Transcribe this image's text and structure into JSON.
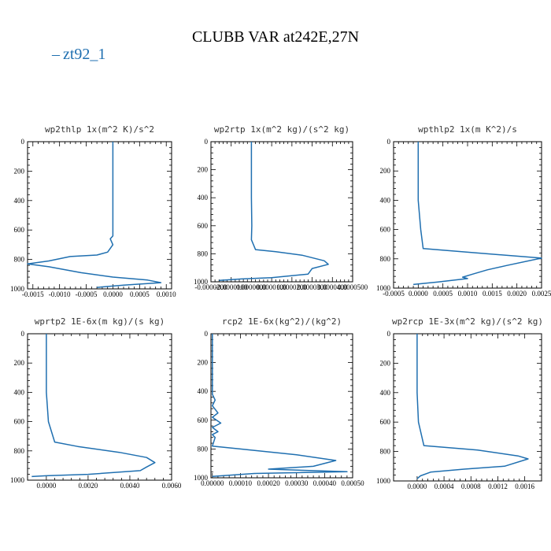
{
  "figure": {
    "title": "CLUBB VAR at242E,27N",
    "legend": [
      {
        "name": "zt92_1",
        "color": "#1f6fb0"
      }
    ]
  },
  "chart_data": [
    {
      "type": "line",
      "title": "wp2thlp   1x(m^2 K)/s^2",
      "xlim": [
        -0.0016,
        0.0011
      ],
      "ylim": [
        1000,
        0
      ],
      "xticks": [
        -0.0015,
        -0.001,
        -0.0005,
        0,
        0.0005,
        0.001
      ],
      "xtick_labels": [
        "-0.0015",
        "-0.0010",
        "-0.0005",
        "0.0000",
        "0.0005",
        "0.0010"
      ],
      "yticks": [
        0,
        200,
        400,
        600,
        800,
        1000
      ],
      "series": [
        {
          "name": "zt92_1",
          "color": "#1f6fb0",
          "x": [
            0,
            0,
            0,
            0,
            0,
            0,
            -5e-05,
            0,
            -0.0001,
            -0.0003,
            -0.0008,
            -0.0012,
            -0.0016,
            -0.0012,
            -0.0006,
            0,
            0.00065,
            0.0009,
            0.0002,
            -0.0003
          ],
          "y": [
            0,
            200,
            400,
            500,
            600,
            640,
            660,
            700,
            750,
            770,
            780,
            810,
            830,
            850,
            890,
            920,
            940,
            958,
            975,
            990
          ]
        }
      ]
    },
    {
      "type": "line",
      "title": "wp2rtp   1x(m^2 kg)/(s^2 kg)",
      "xlim": [
        -2e-05,
        5e-05
      ],
      "ylim": [
        1000,
        0
      ],
      "xticks": [
        -2e-05,
        -1e-05,
        0,
        1e-05,
        2e-05,
        3e-05,
        4e-05,
        5e-05
      ],
      "xtick_labels": [
        "-0.0000200",
        "-0.0000100",
        "0.0000000",
        "0.0000100",
        "0.0000200",
        "0.0000300",
        "0.0000400",
        "0.0000500"
      ],
      "yticks": [
        0,
        200,
        400,
        600,
        800,
        1000
      ],
      "series": [
        {
          "name": "zt92_1",
          "color": "#1f6fb0",
          "x": [
            0,
            0,
            0,
            2e-07,
            0,
            2e-06,
            1.2e-05,
            2.5e-05,
            3.6e-05,
            3.8e-05,
            3e-05,
            2.8e-05,
            1e-05,
            -5e-06,
            -1.6e-05
          ],
          "y": [
            0,
            200,
            400,
            600,
            700,
            770,
            785,
            810,
            850,
            875,
            905,
            945,
            970,
            980,
            990
          ]
        }
      ]
    },
    {
      "type": "line",
      "title": "wpthlp2   1x(m K^2)/s",
      "xlim": [
        -0.0005,
        0.0025
      ],
      "ylim": [
        1000,
        0
      ],
      "xticks": [
        -0.0005,
        0,
        0.0005,
        0.001,
        0.0015,
        0.002,
        0.0025
      ],
      "xtick_labels": [
        "-0.0005",
        "0.0000",
        "0.0005",
        "0.0010",
        "0.0015",
        "0.0020",
        "0.0025"
      ],
      "yticks": [
        0,
        200,
        400,
        600,
        800,
        1000
      ],
      "series": [
        {
          "name": "zt92_1",
          "color": "#1f6fb0",
          "x": [
            0,
            0,
            0,
            5e-05,
            0.0001,
            0.0012,
            0.0025,
            0.0018,
            0.0014,
            0.0011,
            0.0009,
            0.001,
            0.0004,
            -0.0001
          ],
          "y": [
            0,
            200,
            400,
            600,
            730,
            760,
            795,
            845,
            875,
            905,
            925,
            935,
            958,
            975
          ]
        }
      ]
    },
    {
      "type": "line",
      "title": "wprtp2   1E-6x(m kg)/(s kg)",
      "xlim": [
        -0.0009,
        0.006
      ],
      "ylim": [
        1000,
        0
      ],
      "xticks": [
        0,
        0.002,
        0.004,
        0.006
      ],
      "xtick_labels": [
        "0.0000",
        "0.0020",
        "0.0040",
        "0.0060"
      ],
      "yticks": [
        0,
        200,
        400,
        600,
        800,
        1000
      ],
      "series": [
        {
          "name": "zt92_1",
          "color": "#1f6fb0",
          "x": [
            0,
            0,
            0,
            0.0001,
            0.0004,
            0.0015,
            0.0035,
            0.0048,
            0.0052,
            0.0048,
            0.0045,
            0.002,
            0,
            -0.0007
          ],
          "y": [
            0,
            200,
            400,
            600,
            740,
            770,
            810,
            845,
            880,
            910,
            935,
            960,
            970,
            975
          ]
        }
      ]
    },
    {
      "type": "line",
      "title": "rcp2   1E-6x(kg^2)/(kg^2)",
      "xlim": [
        -5e-06,
        0.0005
      ],
      "ylim": [
        1000,
        0
      ],
      "xticks": [
        0,
        0.0001,
        0.0002,
        0.0003,
        0.0004,
        0.0005
      ],
      "xtick_labels": [
        "0.00000",
        "0.00010",
        "0.00020",
        "0.00030",
        "0.00040",
        "0.00050"
      ],
      "yticks": [
        0,
        200,
        400,
        600,
        800,
        1000
      ],
      "series": [
        {
          "name": "zt92_1",
          "color": "#1f6fb0",
          "x": [
            0,
            0,
            0,
            1e-05,
            0,
            2e-05,
            0,
            3e-05,
            0,
            2e-05,
            0,
            1e-05,
            0,
            0.0001,
            0.0003,
            0.00044,
            0.00036,
            0.0002,
            0.00048,
            0.00015,
            0
          ],
          "y": [
            0,
            300,
            420,
            460,
            500,
            550,
            580,
            620,
            650,
            680,
            700,
            720,
            780,
            800,
            840,
            880,
            920,
            940,
            958,
            970,
            990
          ]
        }
      ]
    },
    {
      "type": "line",
      "title": "wp2rcp   1E-3x(m^2 kg)/(s^2 kg)",
      "xlim": [
        -0.00035,
        0.00185
      ],
      "ylim": [
        1000,
        0
      ],
      "xticks": [
        0,
        0.0004,
        0.0008,
        0.0012,
        0.0016
      ],
      "xtick_labels": [
        "0.0000",
        "0.0004",
        "0.0008",
        "0.0012",
        "0.0016"
      ],
      "yticks": [
        0,
        200,
        400,
        600,
        800,
        1000
      ],
      "series": [
        {
          "name": "zt92_1",
          "color": "#1f6fb0",
          "x": [
            0,
            0,
            0,
            2e-05,
            0.0001,
            0.0009,
            0.0015,
            0.00165,
            0.0013,
            0.0007,
            0.0002,
            5e-05,
            0
          ],
          "y": [
            0,
            200,
            400,
            600,
            760,
            790,
            830,
            850,
            900,
            920,
            940,
            965,
            985
          ]
        }
      ]
    }
  ]
}
